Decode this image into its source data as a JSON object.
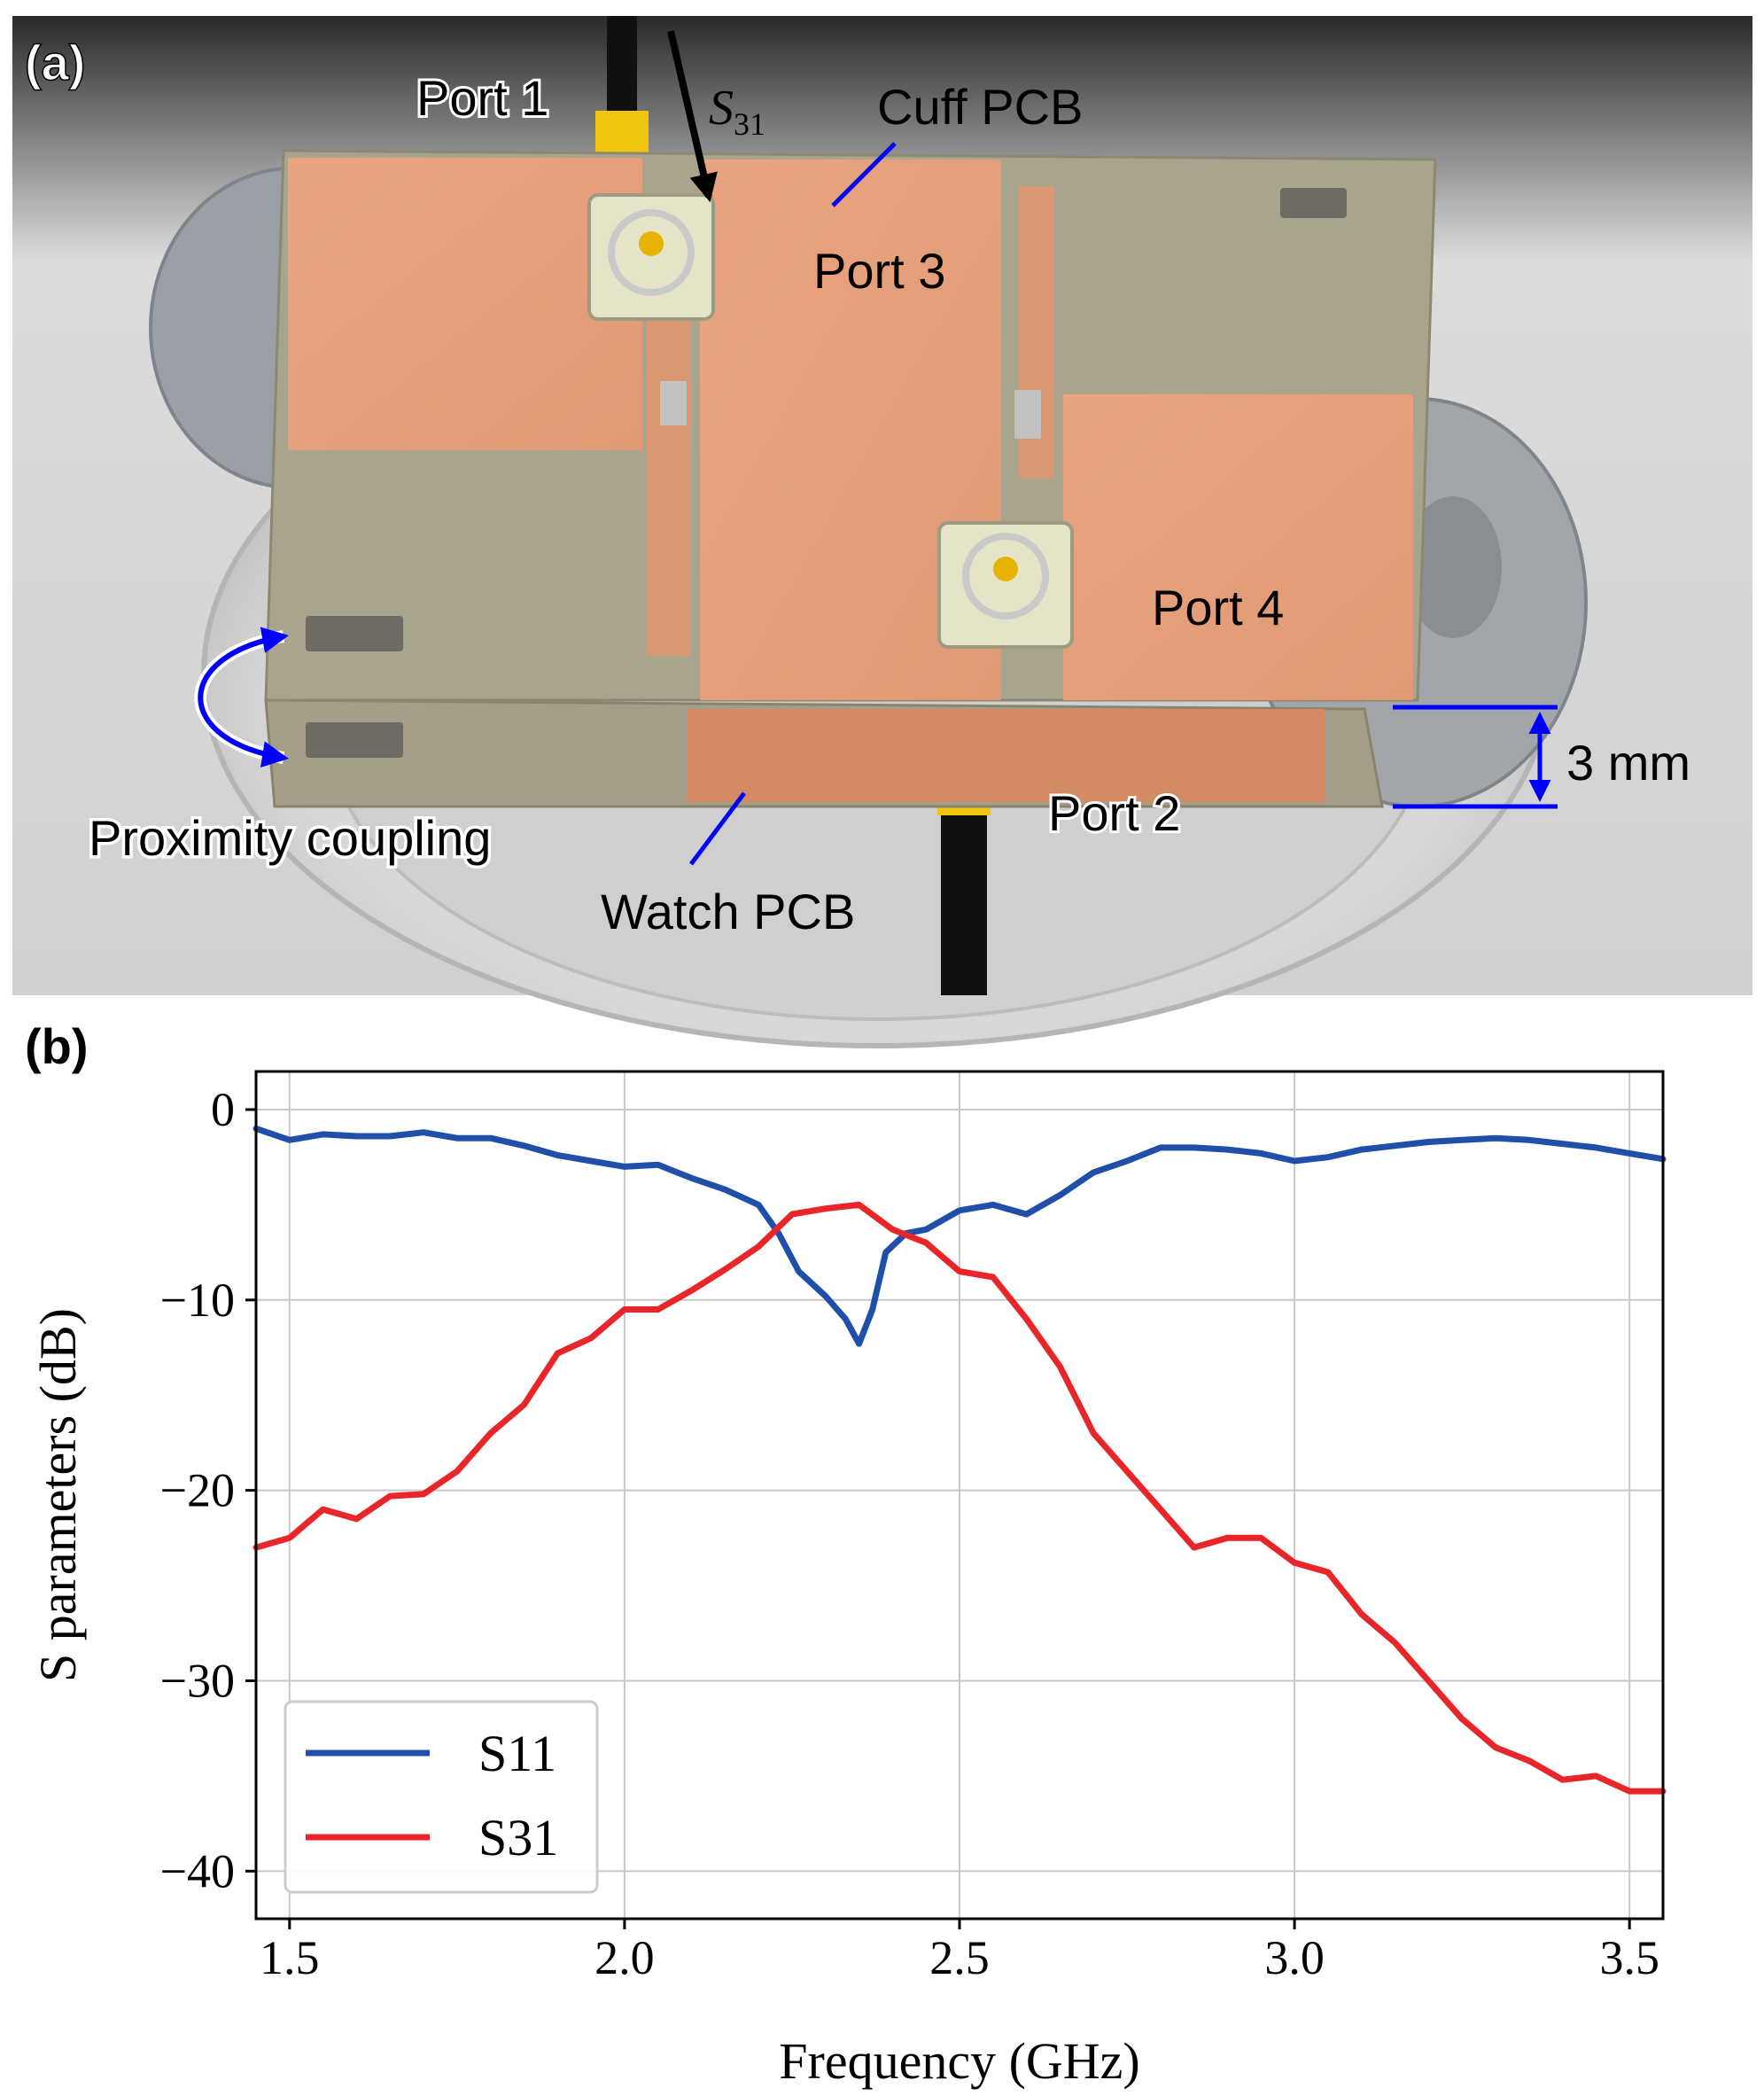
{
  "panel_a": {
    "label": "(a)",
    "annotations": {
      "port1": "Port 1",
      "s31_symbol": "S",
      "s31_sub": "31",
      "cuff_pcb": "Cuff PCB",
      "port3": "Port 3",
      "port4": "Port 4",
      "port2": "Port 2",
      "thickness": "3 mm",
      "proximity": "Proximity coupling",
      "watch_pcb": "Watch PCB"
    },
    "colors": {
      "annotation_line": "#0000ff",
      "copper": "#e8a07a",
      "substrate": "#a8a48e"
    }
  },
  "panel_b": {
    "label": "(b)"
  },
  "chart_data": {
    "type": "line",
    "xlabel": "Frequency (GHz)",
    "ylabel": "S parameters (dB)",
    "xlim": [
      1.45,
      3.55
    ],
    "ylim": [
      -42.5,
      2
    ],
    "xticks": [
      1.5,
      2.0,
      2.5,
      3.0,
      3.5
    ],
    "xtick_labels": [
      "1.5",
      "2.0",
      "2.5",
      "3.0",
      "3.5"
    ],
    "yticks": [
      0,
      -10,
      -20,
      -30,
      -40
    ],
    "ytick_labels": [
      "0",
      "−10",
      "−20",
      "−30",
      "−40"
    ],
    "grid": true,
    "legend": "lower-left",
    "series": [
      {
        "name": "S11",
        "color": "#1f4fa8",
        "x": [
          1.45,
          1.5,
          1.55,
          1.6,
          1.65,
          1.7,
          1.75,
          1.8,
          1.85,
          1.9,
          1.95,
          2.0,
          2.05,
          2.1,
          2.15,
          2.2,
          2.23,
          2.26,
          2.3,
          2.33,
          2.35,
          2.37,
          2.39,
          2.42,
          2.45,
          2.5,
          2.55,
          2.6,
          2.65,
          2.7,
          2.75,
          2.8,
          2.85,
          2.9,
          2.95,
          3.0,
          3.05,
          3.1,
          3.15,
          3.2,
          3.25,
          3.3,
          3.35,
          3.4,
          3.45,
          3.5,
          3.55
        ],
        "y": [
          -1.0,
          -1.6,
          -1.3,
          -1.4,
          -1.4,
          -1.2,
          -1.5,
          -1.5,
          -1.9,
          -2.4,
          -2.7,
          -3.0,
          -2.9,
          -3.6,
          -4.2,
          -5.0,
          -6.5,
          -8.5,
          -9.8,
          -11.0,
          -12.3,
          -10.5,
          -7.5,
          -6.5,
          -6.3,
          -5.3,
          -5.0,
          -5.5,
          -4.5,
          -3.3,
          -2.7,
          -2.0,
          -2.0,
          -2.1,
          -2.3,
          -2.7,
          -2.5,
          -2.1,
          -1.9,
          -1.7,
          -1.6,
          -1.5,
          -1.6,
          -1.8,
          -2.0,
          -2.3,
          -2.6
        ]
      },
      {
        "name": "S31",
        "color": "#e8262a",
        "x": [
          1.45,
          1.5,
          1.55,
          1.6,
          1.65,
          1.7,
          1.75,
          1.8,
          1.85,
          1.9,
          1.95,
          2.0,
          2.05,
          2.1,
          2.15,
          2.2,
          2.25,
          2.3,
          2.35,
          2.4,
          2.45,
          2.5,
          2.55,
          2.6,
          2.65,
          2.7,
          2.75,
          2.8,
          2.85,
          2.9,
          2.95,
          3.0,
          3.05,
          3.1,
          3.15,
          3.2,
          3.25,
          3.3,
          3.35,
          3.4,
          3.45,
          3.5,
          3.55
        ],
        "y": [
          -23.0,
          -22.5,
          -21.0,
          -21.5,
          -20.3,
          -20.2,
          -19.0,
          -17.0,
          -15.5,
          -12.8,
          -12.0,
          -10.5,
          -10.5,
          -9.5,
          -8.4,
          -7.2,
          -5.5,
          -5.2,
          -5.0,
          -6.3,
          -7.0,
          -8.5,
          -8.8,
          -11.0,
          -13.5,
          -17.0,
          -19.0,
          -21.0,
          -23.0,
          -22.5,
          -22.5,
          -23.8,
          -24.3,
          -26.5,
          -28.0,
          -30.0,
          -32.0,
          -33.5,
          -34.2,
          -35.2,
          -35.0,
          -35.8,
          -35.8
        ]
      }
    ]
  }
}
